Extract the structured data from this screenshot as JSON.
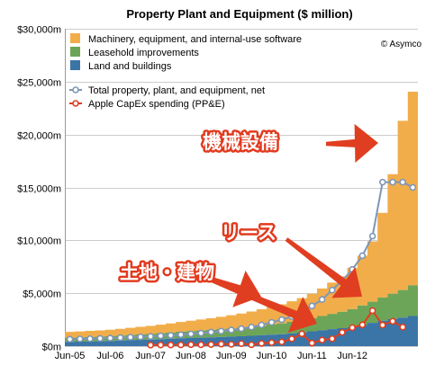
{
  "chart_data": {
    "type": "area",
    "title": "Property Plant and Equipment ($ million)",
    "copyright": "© Asymco",
    "yticks": [
      "$0m",
      "$5,000m",
      "$10,000m",
      "$15,000m",
      "$20,000m",
      "$25,000m",
      "$30,000m"
    ],
    "ytick_values": [
      0,
      5000,
      10000,
      15000,
      20000,
      25000,
      30000
    ],
    "ylim": [
      0,
      30000
    ],
    "xticks": [
      "Jun-05",
      "Jul-06",
      "Jun-07",
      "Jun-08",
      "Jun-09",
      "Jun-10",
      "Jun-11",
      "Jun-12"
    ],
    "xtick_index": [
      0,
      4,
      8,
      12,
      16,
      20,
      24,
      28
    ],
    "legend": [
      "Machinery, equipment, and internal-use software",
      "Leasehold improvements",
      "Land and buildings",
      "Total property, plant, and equipment, net",
      "Apple CapEx spending (PP&E)"
    ],
    "colors": {
      "machinery": "#f2ad4b",
      "leasehold": "#6da558",
      "land": "#3b74a6",
      "total": "#7e96b6",
      "capex": "#e03e20",
      "grid": "#cccccc"
    },
    "series": [
      {
        "name": "Land and buildings",
        "values": [
          400,
          420,
          440,
          460,
          480,
          520,
          560,
          600,
          620,
          660,
          700,
          740,
          770,
          800,
          830,
          860,
          900,
          940,
          980,
          1030,
          1080,
          1130,
          1200,
          1280,
          1400,
          1500,
          1600,
          1700,
          1800,
          2000,
          2200,
          2400,
          2550,
          2700,
          2850
        ]
      },
      {
        "name": "Leasehold improvements",
        "values": [
          400,
          410,
          420,
          430,
          450,
          470,
          490,
          510,
          530,
          560,
          590,
          620,
          650,
          680,
          710,
          740,
          770,
          800,
          850,
          900,
          960,
          1020,
          1090,
          1160,
          1250,
          1350,
          1450,
          1550,
          1700,
          1850,
          2000,
          2200,
          2400,
          2600,
          2900
        ]
      },
      {
        "name": "Machinery, equipment, and internal-use software",
        "values": [
          550,
          560,
          580,
          600,
          620,
          650,
          680,
          720,
          760,
          810,
          860,
          920,
          980,
          1040,
          1100,
          1170,
          1250,
          1340,
          1440,
          1550,
          1670,
          1800,
          1950,
          2100,
          2300,
          2600,
          2950,
          3350,
          3900,
          4700,
          5700,
          8000,
          11300,
          16000,
          18300
        ]
      },
      {
        "name": "Total property, plant, and equipment, net",
        "values": [
          650,
          680,
          700,
          730,
          760,
          800,
          840,
          880,
          920,
          970,
          1020,
          1080,
          1150,
          1230,
          1320,
          1420,
          1520,
          1650,
          1800,
          2000,
          2250,
          2500,
          2800,
          3250,
          3800,
          4400,
          5300,
          6200,
          7250,
          8550,
          10400,
          15500,
          15500,
          15500,
          15000
        ]
      },
      {
        "name": "Apple CapEx spending (PP&E)",
        "start": 8,
        "values": [
          100,
          110,
          115,
          120,
          140,
          130,
          150,
          200,
          170,
          240,
          130,
          260,
          330,
          400,
          690,
          1160,
          290,
          580,
          700,
          1300,
          1750,
          2010,
          3350,
          1990,
          2350,
          1800
        ]
      }
    ],
    "annotations": [
      "機械設備",
      "リース",
      "土地・建物"
    ]
  }
}
